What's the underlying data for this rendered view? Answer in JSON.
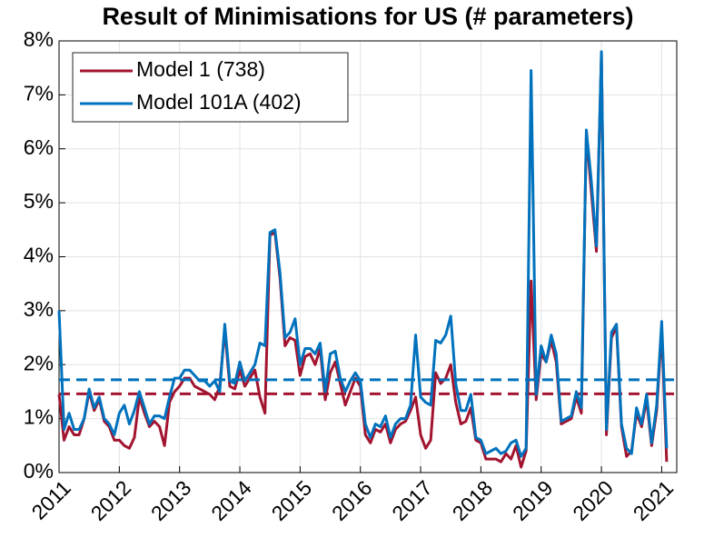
{
  "chart_data": {
    "type": "line",
    "title": "Result of Minimisations for US (# parameters)",
    "x": [
      2011,
      2011.083,
      2011.167,
      2011.25,
      2011.333,
      2011.417,
      2011.5,
      2011.583,
      2011.667,
      2011.75,
      2011.833,
      2011.917,
      2012,
      2012.083,
      2012.167,
      2012.25,
      2012.333,
      2012.417,
      2012.5,
      2012.583,
      2012.667,
      2012.75,
      2012.833,
      2012.917,
      2013,
      2013.083,
      2013.167,
      2013.25,
      2013.333,
      2013.417,
      2013.5,
      2013.583,
      2013.667,
      2013.75,
      2013.833,
      2013.917,
      2014,
      2014.083,
      2014.167,
      2014.25,
      2014.333,
      2014.417,
      2014.5,
      2014.583,
      2014.667,
      2014.75,
      2014.833,
      2014.917,
      2015,
      2015.083,
      2015.167,
      2015.25,
      2015.333,
      2015.417,
      2015.5,
      2015.583,
      2015.667,
      2015.75,
      2015.833,
      2015.917,
      2016,
      2016.083,
      2016.167,
      2016.25,
      2016.333,
      2016.417,
      2016.5,
      2016.583,
      2016.667,
      2016.75,
      2016.833,
      2016.917,
      2017,
      2017.083,
      2017.167,
      2017.25,
      2017.333,
      2017.417,
      2017.5,
      2017.583,
      2017.667,
      2017.75,
      2017.833,
      2017.917,
      2018,
      2018.083,
      2018.167,
      2018.25,
      2018.333,
      2018.417,
      2018.5,
      2018.583,
      2018.667,
      2018.75,
      2018.833,
      2018.917,
      2019,
      2019.083,
      2019.167,
      2019.25,
      2019.333,
      2019.417,
      2019.5,
      2019.583,
      2019.667,
      2019.75,
      2019.833,
      2019.917,
      2020,
      2020.083,
      2020.167,
      2020.25,
      2020.333,
      2020.417,
      2020.5,
      2020.583,
      2020.667,
      2020.75,
      2020.833,
      2020.917,
      2021,
      2021.083
    ],
    "series": [
      {
        "name": "Model 1 (738)",
        "color": "#a2142f",
        "mean": 1.46,
        "values": [
          1.45,
          0.6,
          0.85,
          0.7,
          0.7,
          1.0,
          1.5,
          1.15,
          1.35,
          0.95,
          0.85,
          0.6,
          0.6,
          0.5,
          0.45,
          0.65,
          1.4,
          1.1,
          0.85,
          0.95,
          0.85,
          0.5,
          1.3,
          1.5,
          1.6,
          1.75,
          1.75,
          1.6,
          1.55,
          1.5,
          1.45,
          1.35,
          1.6,
          2.65,
          1.6,
          1.55,
          1.9,
          1.6,
          1.75,
          1.9,
          1.4,
          1.1,
          4.4,
          4.45,
          3.6,
          2.35,
          2.5,
          2.45,
          1.8,
          2.15,
          2.2,
          2.0,
          2.3,
          1.35,
          1.85,
          2.05,
          1.65,
          1.25,
          1.5,
          1.75,
          1.6,
          0.7,
          0.55,
          0.8,
          0.75,
          0.9,
          0.55,
          0.8,
          0.9,
          0.95,
          1.15,
          1.4,
          0.7,
          0.45,
          0.6,
          1.85,
          1.65,
          1.75,
          2.0,
          1.3,
          0.9,
          0.95,
          1.2,
          0.6,
          0.55,
          0.25,
          0.25,
          0.25,
          0.2,
          0.35,
          0.25,
          0.5,
          0.1,
          0.4,
          3.55,
          1.35,
          2.2,
          2.05,
          2.45,
          2.05,
          0.9,
          0.95,
          1.0,
          1.4,
          1.1,
          6.3,
          5.2,
          4.1,
          7.75,
          0.7,
          2.5,
          2.7,
          0.85,
          0.3,
          0.4,
          1.1,
          0.85,
          1.35,
          0.5,
          1.15,
          2.65,
          0.2
        ]
      },
      {
        "name": "Model 101A (402)",
        "color": "#0072bd",
        "mean": 1.72,
        "values": [
          3.0,
          0.8,
          1.1,
          0.8,
          0.8,
          1.0,
          1.55,
          1.2,
          1.4,
          1.0,
          0.9,
          0.7,
          1.1,
          1.25,
          0.9,
          1.15,
          1.5,
          1.2,
          0.9,
          1.05,
          1.05,
          1.0,
          1.4,
          1.75,
          1.75,
          1.9,
          1.9,
          1.8,
          1.7,
          1.7,
          1.6,
          1.7,
          1.5,
          2.75,
          1.7,
          1.65,
          2.05,
          1.7,
          1.85,
          2.0,
          2.4,
          2.35,
          4.45,
          4.5,
          3.7,
          2.5,
          2.6,
          2.85,
          2.0,
          2.3,
          2.3,
          2.2,
          2.4,
          1.5,
          2.2,
          2.25,
          1.75,
          1.5,
          1.7,
          1.85,
          1.7,
          0.9,
          0.65,
          0.9,
          0.85,
          1.05,
          0.65,
          0.9,
          1.0,
          1.0,
          1.25,
          2.55,
          1.4,
          1.3,
          1.25,
          2.45,
          2.4,
          2.55,
          2.9,
          1.65,
          1.15,
          1.15,
          1.45,
          0.65,
          0.6,
          0.35,
          0.4,
          0.45,
          0.35,
          0.4,
          0.55,
          0.6,
          0.3,
          0.45,
          7.45,
          1.45,
          2.35,
          2.05,
          2.55,
          2.2,
          0.95,
          1.0,
          1.05,
          1.5,
          1.2,
          6.35,
          5.4,
          4.2,
          7.8,
          0.8,
          2.6,
          2.75,
          0.9,
          0.45,
          0.35,
          1.2,
          0.9,
          1.45,
          0.55,
          1.25,
          2.8,
          0.45
        ]
      }
    ],
    "xlim": [
      2011,
      2021.25
    ],
    "xticks": [
      2011,
      2012,
      2013,
      2014,
      2015,
      2016,
      2017,
      2018,
      2019,
      2020,
      2021
    ],
    "ylim": [
      0,
      8
    ],
    "yticks": [
      {
        "value": 0,
        "label": "0%"
      },
      {
        "value": 1,
        "label": "1%"
      },
      {
        "value": 2,
        "label": "2%"
      },
      {
        "value": 3,
        "label": "3%"
      },
      {
        "value": 4,
        "label": "4%"
      },
      {
        "value": 5,
        "label": "5%"
      },
      {
        "value": 6,
        "label": "6%"
      },
      {
        "value": 7,
        "label": "7%"
      },
      {
        "value": 8,
        "label": "8%"
      }
    ],
    "grid": true,
    "legend": "top-left"
  }
}
